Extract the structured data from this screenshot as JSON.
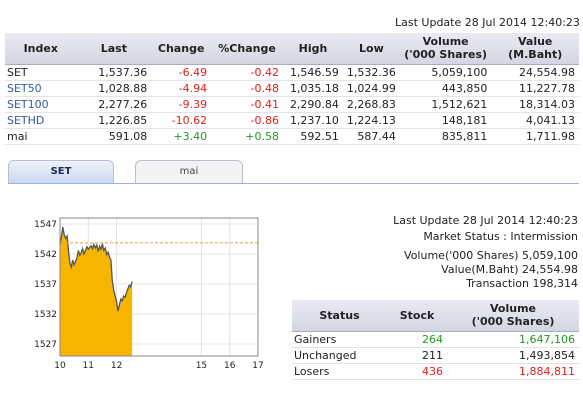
{
  "top_update": "Last Update 28 Jul 2014 12:40:23",
  "index_table": {
    "headers": [
      "Index",
      "Last",
      "Change",
      "%Change",
      "High",
      "Low",
      "Volume\n('000 Shares)",
      "Value\n(M.Baht)"
    ],
    "rows": [
      {
        "name": "SET",
        "last": "1,537.36",
        "change": "-6.49",
        "pct": "-0.42",
        "high": "1,546.59",
        "low": "1,532.36",
        "volume": "5,059,100",
        "value": "24,554.98"
      },
      {
        "name": "SET50",
        "last": "1,028.88",
        "change": "-4.94",
        "pct": "-0.48",
        "high": "1,035.18",
        "low": "1,024.99",
        "volume": "443,850",
        "value": "11,227.78"
      },
      {
        "name": "SET100",
        "last": "2,277.26",
        "change": "-9.39",
        "pct": "-0.41",
        "high": "2,290.84",
        "low": "2,268.83",
        "volume": "1,512,621",
        "value": "18,314.03"
      },
      {
        "name": "SETHD",
        "last": "1,226.85",
        "change": "-10.62",
        "pct": "-0.86",
        "high": "1,237.10",
        "low": "1,224.13",
        "volume": "148,181",
        "value": "4,041.13"
      },
      {
        "name": "mai",
        "last": "591.08",
        "change": "+3.40",
        "pct": "+0.58",
        "high": "592.51",
        "low": "587.44",
        "volume": "835,811",
        "value": "1,711.98"
      }
    ]
  },
  "tabs": {
    "active": "SET",
    "inactive": "mai"
  },
  "market": {
    "update": "Last Update 28 Jul 2014 12:40:23",
    "status": "Market Status : Intermission",
    "volume": "Volume('000 Shares) 5,059,100",
    "value": "Value(M.Baht) 24,554.98",
    "transaction": "Transaction 198,314"
  },
  "status_table": {
    "headers": [
      "Status",
      "Stock",
      "Volume\n('000 Shares)"
    ],
    "rows": [
      {
        "status": "Gainers",
        "stock": "264",
        "volume": "1,647,106",
        "color": "#1f9a20"
      },
      {
        "status": "Unchanged",
        "stock": "211",
        "volume": "1,493,854",
        "color": "#222222"
      },
      {
        "status": "Losers",
        "stock": "436",
        "volume": "1,884,811",
        "color": "#e0201c"
      }
    ]
  },
  "chart_data": {
    "type": "area",
    "x_ticks": [
      "10",
      "11",
      "12",
      "15",
      "16",
      "17"
    ],
    "y_ticks": [
      "1527",
      "1532",
      "1537",
      "1542",
      "1547"
    ],
    "ylim": [
      1525,
      1548
    ],
    "reference_level": 1543.85,
    "colors": {
      "fill": "#f7b500",
      "line": "#555555",
      "reference": "#f0a020"
    },
    "x": [
      10.0,
      10.05,
      10.1,
      10.15,
      10.2,
      10.25,
      10.3,
      10.35,
      10.4,
      10.45,
      10.5,
      10.55,
      10.6,
      10.65,
      10.7,
      10.75,
      10.8,
      10.85,
      10.9,
      10.95,
      11.0,
      11.05,
      11.1,
      11.15,
      11.2,
      11.25,
      11.3,
      11.35,
      11.4,
      11.45,
      11.5,
      11.55,
      11.6,
      11.65,
      11.7,
      11.75,
      11.8,
      11.85,
      11.9,
      11.95,
      12.0,
      12.05,
      12.1,
      12.15,
      12.2,
      12.25,
      12.3,
      12.35,
      12.4,
      12.45,
      12.5,
      12.55
    ],
    "y": [
      1543.5,
      1544.8,
      1546.5,
      1545.2,
      1544.6,
      1545.0,
      1542.5,
      1540.5,
      1539.8,
      1541.0,
      1540.2,
      1540.8,
      1541.4,
      1542.6,
      1541.8,
      1542.2,
      1542.9,
      1542.0,
      1542.6,
      1543.2,
      1542.8,
      1543.1,
      1543.4,
      1542.9,
      1543.6,
      1543.0,
      1543.5,
      1542.4,
      1543.3,
      1542.8,
      1543.7,
      1542.6,
      1543.0,
      1541.9,
      1542.3,
      1541.5,
      1541.0,
      1537.5,
      1536.0,
      1535.0,
      1534.0,
      1532.5,
      1533.5,
      1534.5,
      1534.2,
      1535.0,
      1534.8,
      1535.6,
      1536.2,
      1536.8,
      1536.5,
      1537.4
    ]
  }
}
